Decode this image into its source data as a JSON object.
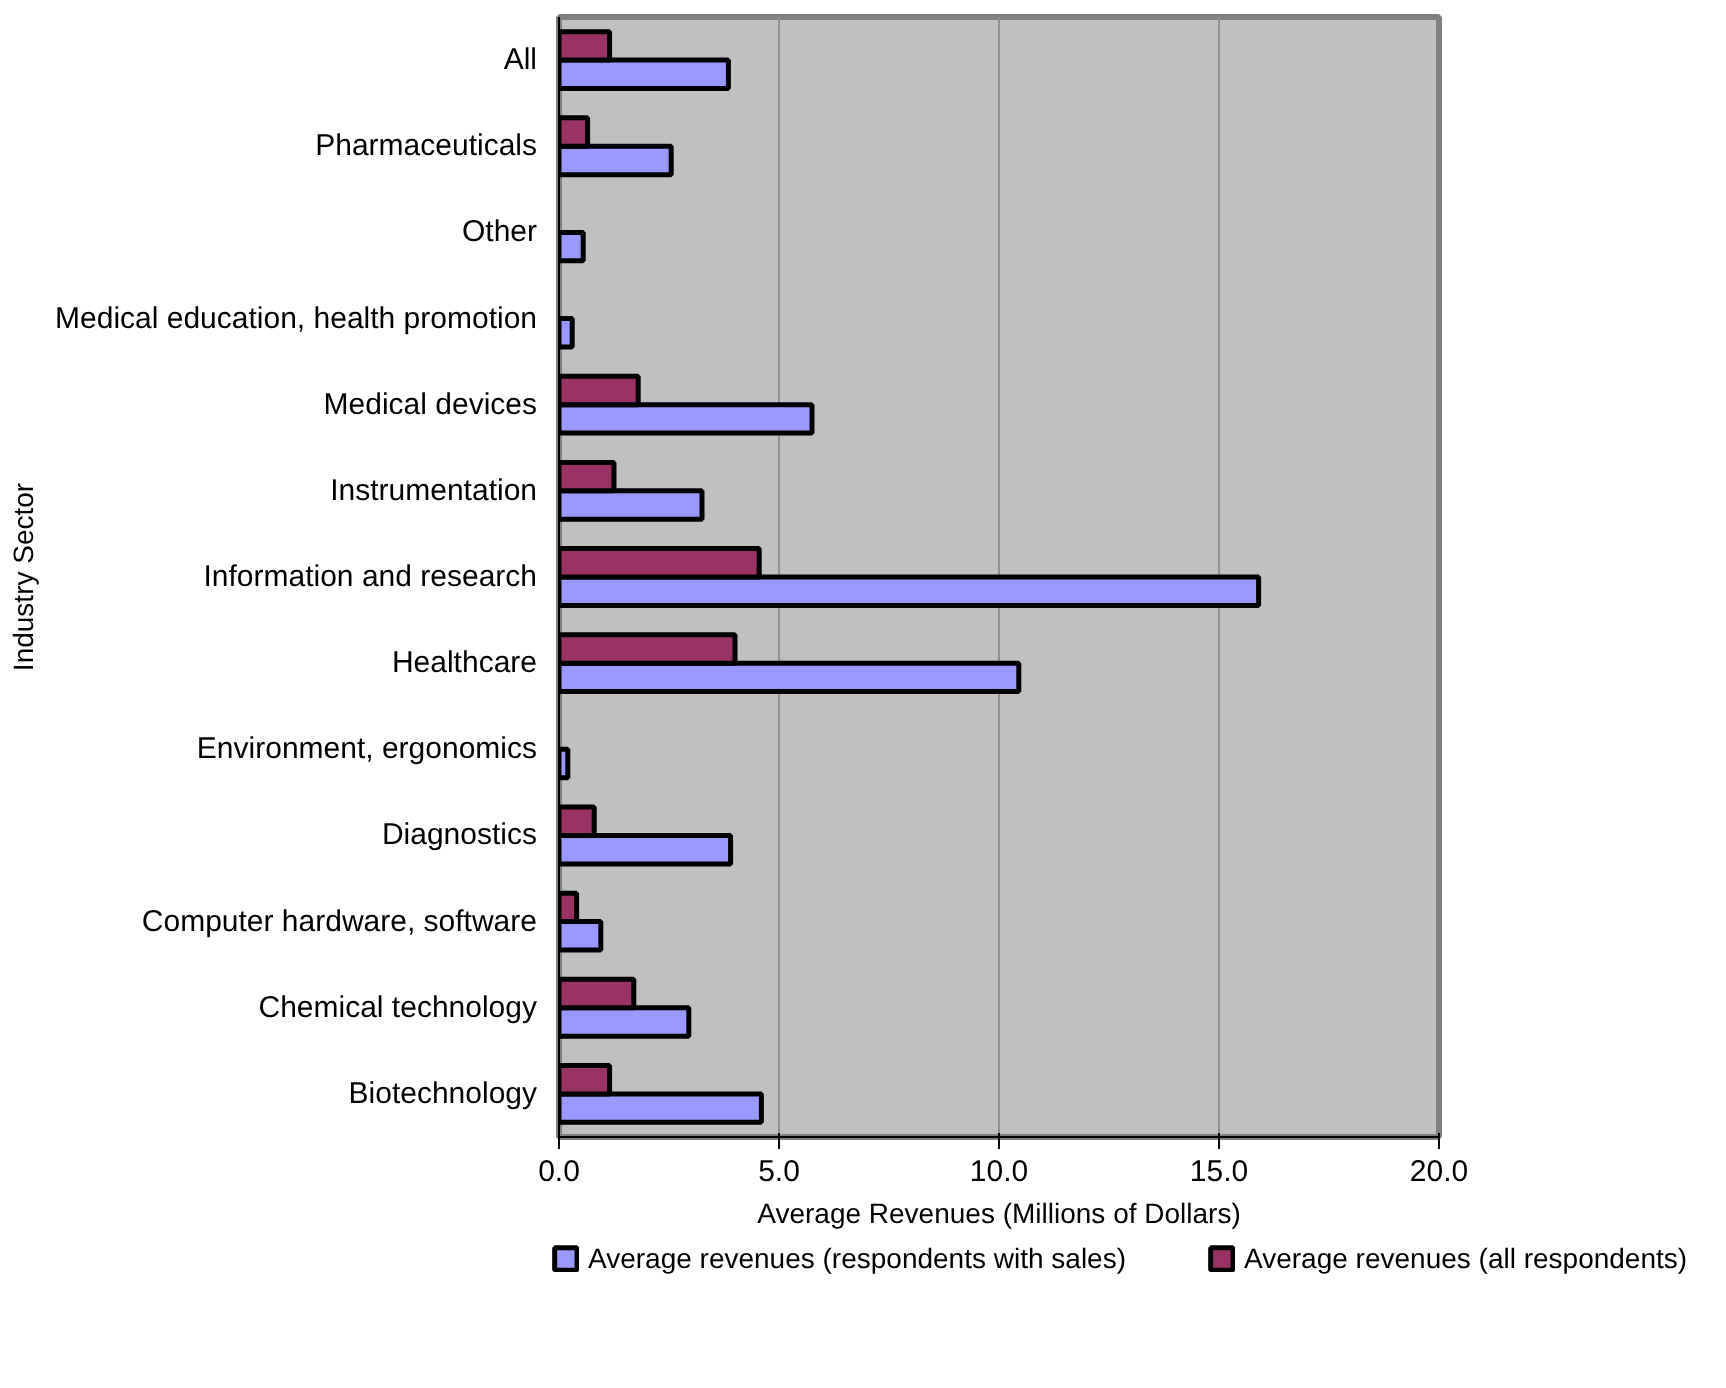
{
  "chart_data": {
    "type": "bar",
    "orientation": "horizontal",
    "categories": [
      "All",
      "Pharmaceuticals",
      "Other",
      "Medical education, health promotion",
      "Medical devices",
      "Instrumentation",
      "Information and research",
      "Healthcare",
      "Environment, ergonomics",
      "Diagnostics",
      "Computer hardware, software",
      "Chemical technology",
      "Biotechnology"
    ],
    "series": [
      {
        "name": "Average revenues (respondents with sales)",
        "color": "#9999ff",
        "values": [
          3.85,
          2.55,
          0.55,
          0.3,
          5.75,
          3.25,
          15.9,
          10.45,
          0.2,
          3.9,
          0.95,
          2.95,
          4.6
        ]
      },
      {
        "name": "Average revenues (all respondents)",
        "color": "#993366",
        "values": [
          1.15,
          0.65,
          null,
          null,
          1.8,
          1.25,
          4.55,
          4.0,
          null,
          0.8,
          0.4,
          1.7,
          1.15
        ]
      }
    ],
    "xlabel": "Average Revenues (Millions of Dollars)",
    "ylabel": "Industry Sector",
    "xlim": [
      0,
      20
    ],
    "xticks": [
      {
        "value": 0,
        "label": "0.0"
      },
      {
        "value": 5,
        "label": "5.0"
      },
      {
        "value": 10,
        "label": "10.0"
      },
      {
        "value": 15,
        "label": "15.0"
      },
      {
        "value": 20,
        "label": "20.0"
      }
    ],
    "grid": "x",
    "legend": "bottom"
  }
}
